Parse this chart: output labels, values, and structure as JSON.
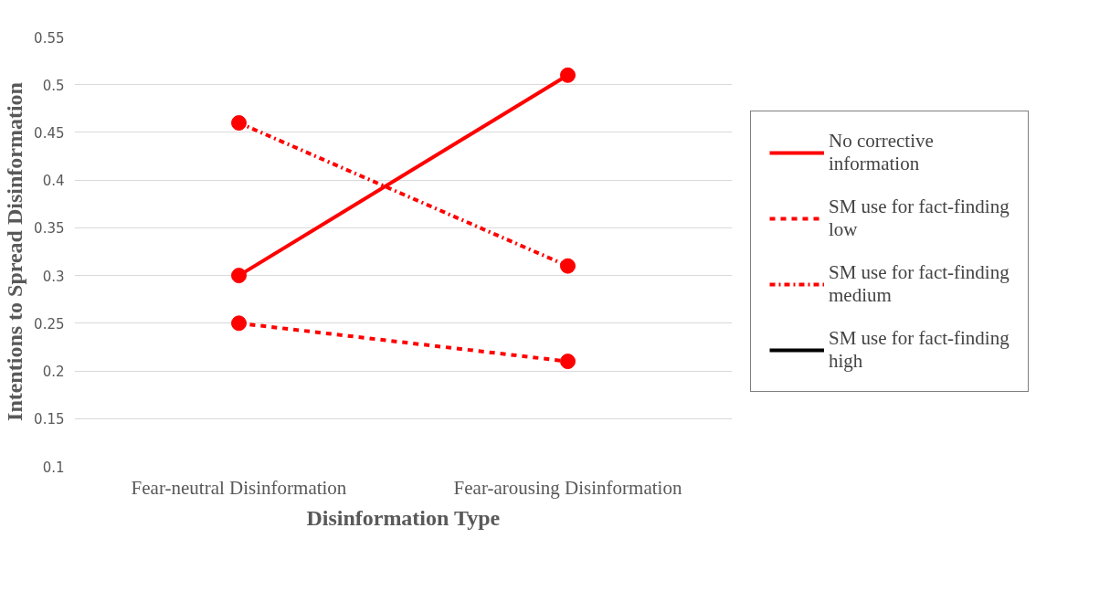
{
  "chart_data": {
    "type": "line",
    "xlabel": "Disinformation Type",
    "ylabel": "Intentions to Spread Disinformation",
    "categories": [
      "Fear-neutral Disinformation",
      "Fear-arousing Disinformation"
    ],
    "series": [
      {
        "name": "No corrective information",
        "color": "#ff0000",
        "line_style": "solid",
        "values": [
          0.3,
          0.51
        ]
      },
      {
        "name": "SM use for fact-finding low",
        "color": "#ff0000",
        "line_style": "dashed",
        "values": [
          0.25,
          0.21
        ]
      },
      {
        "name": "SM use for fact-finding medium",
        "color": "#ff0000",
        "line_style": "dashdot",
        "values": [
          0.46,
          0.31
        ]
      },
      {
        "name": "SM use for fact-finding high",
        "color": "#000000",
        "line_style": "solid",
        "values": [
          null,
          null
        ]
      }
    ],
    "ylim": [
      0.1,
      0.55
    ],
    "yticks": [
      0.1,
      0.15,
      0.2,
      0.25,
      0.3,
      0.35,
      0.4,
      0.45,
      0.5,
      0.55
    ],
    "grid": "y",
    "legend": "right",
    "marker": "circle"
  }
}
